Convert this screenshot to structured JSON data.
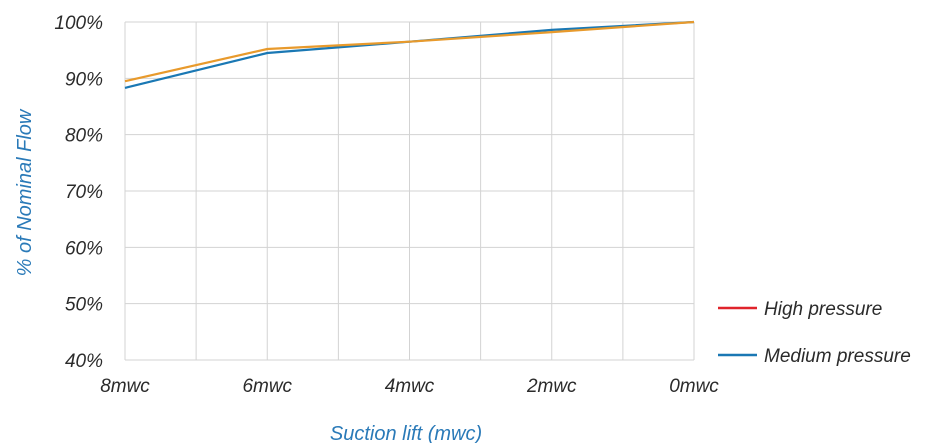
{
  "chart_data": {
    "type": "line",
    "title": "",
    "xlabel": "Suction lift (mwc)",
    "ylabel": "% of Nominal Flow",
    "categories": [
      "8mwc",
      "6mwc",
      "4mwc",
      "2mwc",
      "0mwc"
    ],
    "y_ticks": [
      "40%",
      "50%",
      "60%",
      "70%",
      "80%",
      "90%",
      "100%"
    ],
    "ylim": [
      40,
      100
    ],
    "grid": true,
    "legend_position": "right",
    "series": [
      {
        "name": "High pressure",
        "color": "#e89a2c",
        "legend_color": "#e0242b",
        "values": [
          89.5,
          95.2,
          96.5,
          98.2,
          100
        ]
      },
      {
        "name": "Medium pressure",
        "color": "#1a78b4",
        "legend_color": "#1a78b4",
        "values": [
          88.3,
          94.5,
          96.5,
          98.6,
          100
        ]
      }
    ]
  }
}
